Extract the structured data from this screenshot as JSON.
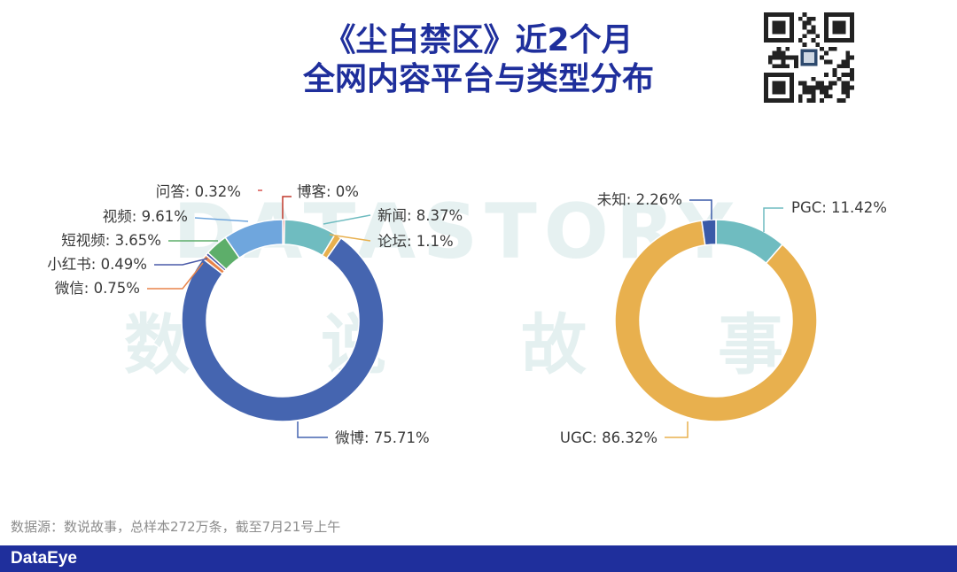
{
  "title": {
    "line1": "《尘白禁区》近2个月",
    "line2": "全网内容平台与类型分布"
  },
  "watermark": {
    "en": "DATASTORY",
    "cn": [
      "数",
      "说",
      "故",
      "事"
    ]
  },
  "source_text": "数据源：数说故事，总样本272万条，截至7月21号上午",
  "brand": "DataEye",
  "chart_data": [
    {
      "type": "pie",
      "variant": "donut",
      "slices": [
        {
          "label": "问答",
          "value": 0.32,
          "display": "问答: 0.32%",
          "color": "#d9534f"
        },
        {
          "label": "博客",
          "value": 0.0,
          "display": "博客: 0%",
          "color": "#c0392b"
        },
        {
          "label": "新闻",
          "value": 8.37,
          "display": "新闻: 8.37%",
          "color": "#6fbcc0"
        },
        {
          "label": "论坛",
          "value": 1.1,
          "display": "论坛: 1.1%",
          "color": "#e8b04e"
        },
        {
          "label": "微博",
          "value": 75.71,
          "display": "微博: 75.71%",
          "color": "#4565b0"
        },
        {
          "label": "微信",
          "value": 0.75,
          "display": "微信: 0.75%",
          "color": "#e8844a"
        },
        {
          "label": "小红书",
          "value": 0.49,
          "display": "小红书: 0.49%",
          "color": "#4a5aa8"
        },
        {
          "label": "短视频",
          "value": 3.65,
          "display": "短视频: 3.65%",
          "color": "#5dae6a"
        },
        {
          "label": "视频",
          "value": 9.61,
          "display": "视频: 9.61%",
          "color": "#6fa6dd"
        }
      ]
    },
    {
      "type": "pie",
      "variant": "donut",
      "slices": [
        {
          "label": "PGC",
          "value": 11.42,
          "display": "PGC: 11.42%",
          "color": "#6fbcc0"
        },
        {
          "label": "UGC",
          "value": 86.32,
          "display": "UGC: 86.32%",
          "color": "#e8b04e"
        },
        {
          "label": "未知",
          "value": 2.26,
          "display": "未知: 2.26%",
          "color": "#3a5aa8"
        }
      ]
    }
  ]
}
